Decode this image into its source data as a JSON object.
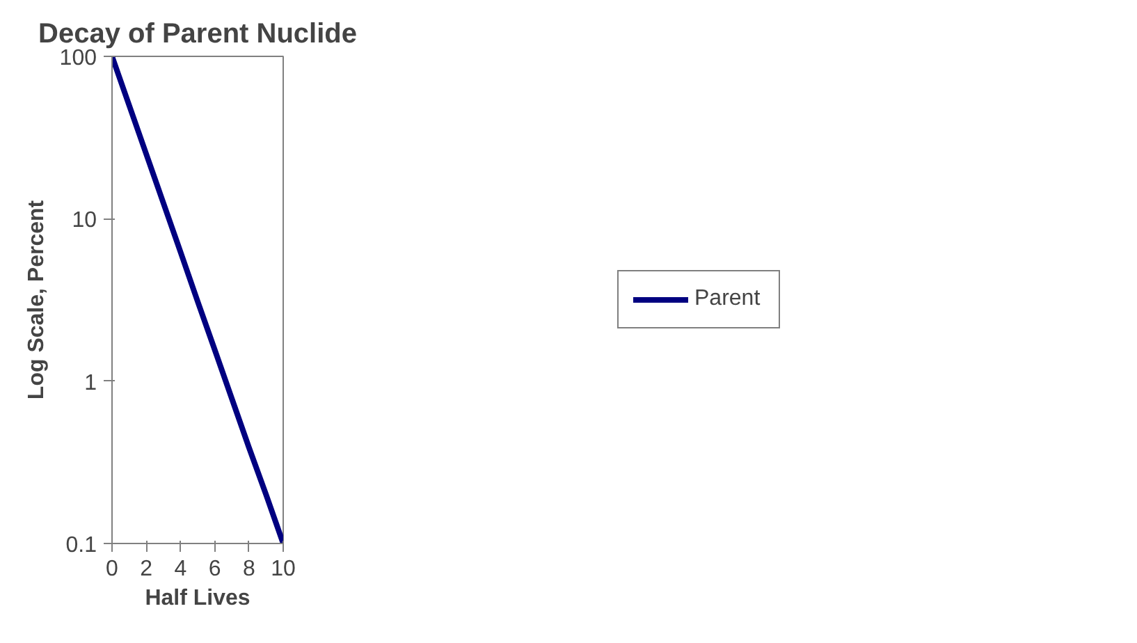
{
  "chart_data": {
    "type": "line",
    "title": "Decay of Parent Nuclide",
    "xlabel": "Half Lives",
    "ylabel": "Log Scale, Percent",
    "x": [
      0,
      1,
      2,
      3,
      4,
      5,
      6,
      7,
      8,
      9,
      10
    ],
    "series": [
      {
        "name": "Parent",
        "color": "#000080",
        "values": [
          100,
          50,
          25,
          12.5,
          6.25,
          3.1,
          1.56,
          0.78,
          0.39,
          0.2,
          0.1
        ]
      }
    ],
    "xlim": [
      0,
      10
    ],
    "xticks": [
      0,
      2,
      4,
      6,
      8,
      10
    ],
    "ylim": [
      0.1,
      100
    ],
    "yticks": [
      {
        "value": 0.1,
        "label": "0.1"
      },
      {
        "value": 1,
        "label": "1"
      },
      {
        "value": 10,
        "label": "10"
      },
      {
        "value": 100,
        "label": "100"
      }
    ],
    "log": true,
    "legend": "right",
    "marker": "none",
    "line_style": "solid"
  }
}
